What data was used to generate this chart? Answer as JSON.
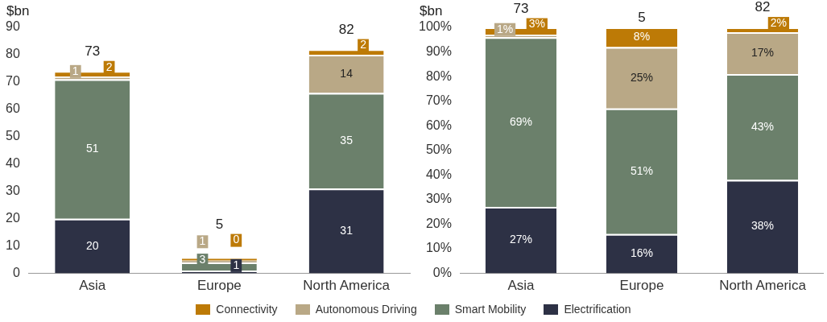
{
  "chart_data": [
    {
      "type": "bar",
      "stacked": true,
      "ylabel": "$bn",
      "categories": [
        "Asia",
        "Europe",
        "North America"
      ],
      "ylim": [
        0,
        90
      ],
      "yticks": [
        0,
        10,
        20,
        30,
        40,
        50,
        60,
        70,
        80,
        90
      ],
      "legend": "bottom",
      "data_labels": true,
      "totals": [
        "73",
        "5",
        "82"
      ],
      "series": [
        {
          "name": "Electrification",
          "color": "#2d3145",
          "values": [
            20,
            1,
            31
          ]
        },
        {
          "name": "Smart Mobility",
          "color": "#6b806b",
          "values": [
            51,
            3,
            35
          ]
        },
        {
          "name": "Autonomous Driving",
          "color": "#b9a886",
          "values": [
            1,
            1,
            14
          ]
        },
        {
          "name": "Connectivity",
          "color": "#bd7a06",
          "values": [
            2,
            0,
            2
          ]
        }
      ]
    },
    {
      "type": "bar",
      "stacked": true,
      "ylabel": "$bn",
      "categories": [
        "Asia",
        "Europe",
        "North America"
      ],
      "ylim": [
        0,
        100
      ],
      "yticks": [
        {
          "value": 0,
          "label": "0%"
        },
        {
          "value": 10,
          "label": "10%"
        },
        {
          "value": 20,
          "label": "20%"
        },
        {
          "value": 30,
          "label": "30%"
        },
        {
          "value": 40,
          "label": "40%"
        },
        {
          "value": 50,
          "label": "50%"
        },
        {
          "value": 60,
          "label": "60%"
        },
        {
          "value": 70,
          "label": "70%"
        },
        {
          "value": 80,
          "label": "80%"
        },
        {
          "value": 90,
          "label": "90%"
        },
        {
          "value": 100,
          "label": "100%"
        }
      ],
      "annotations": [
        "73",
        "5",
        "82"
      ],
      "legend": "bottom",
      "series": [
        {
          "name": "Electrification",
          "color": "#2d3145",
          "values": [
            27,
            16,
            38
          ],
          "value_labels": [
            "27%",
            "16%",
            "38%"
          ]
        },
        {
          "name": "Smart Mobility",
          "color": "#6b806b",
          "values": [
            69,
            51,
            43
          ],
          "value_labels": [
            "69%",
            "51%",
            "43%"
          ]
        },
        {
          "name": "Autonomous Driving",
          "color": "#b9a886",
          "values": [
            1,
            25,
            17
          ],
          "value_labels": [
            "1%",
            "25%",
            "17%"
          ]
        },
        {
          "name": "Connectivity",
          "color": "#bd7a06",
          "values": [
            3,
            8,
            2
          ],
          "value_labels": [
            "3%",
            "8%",
            "2%"
          ]
        }
      ]
    }
  ]
}
